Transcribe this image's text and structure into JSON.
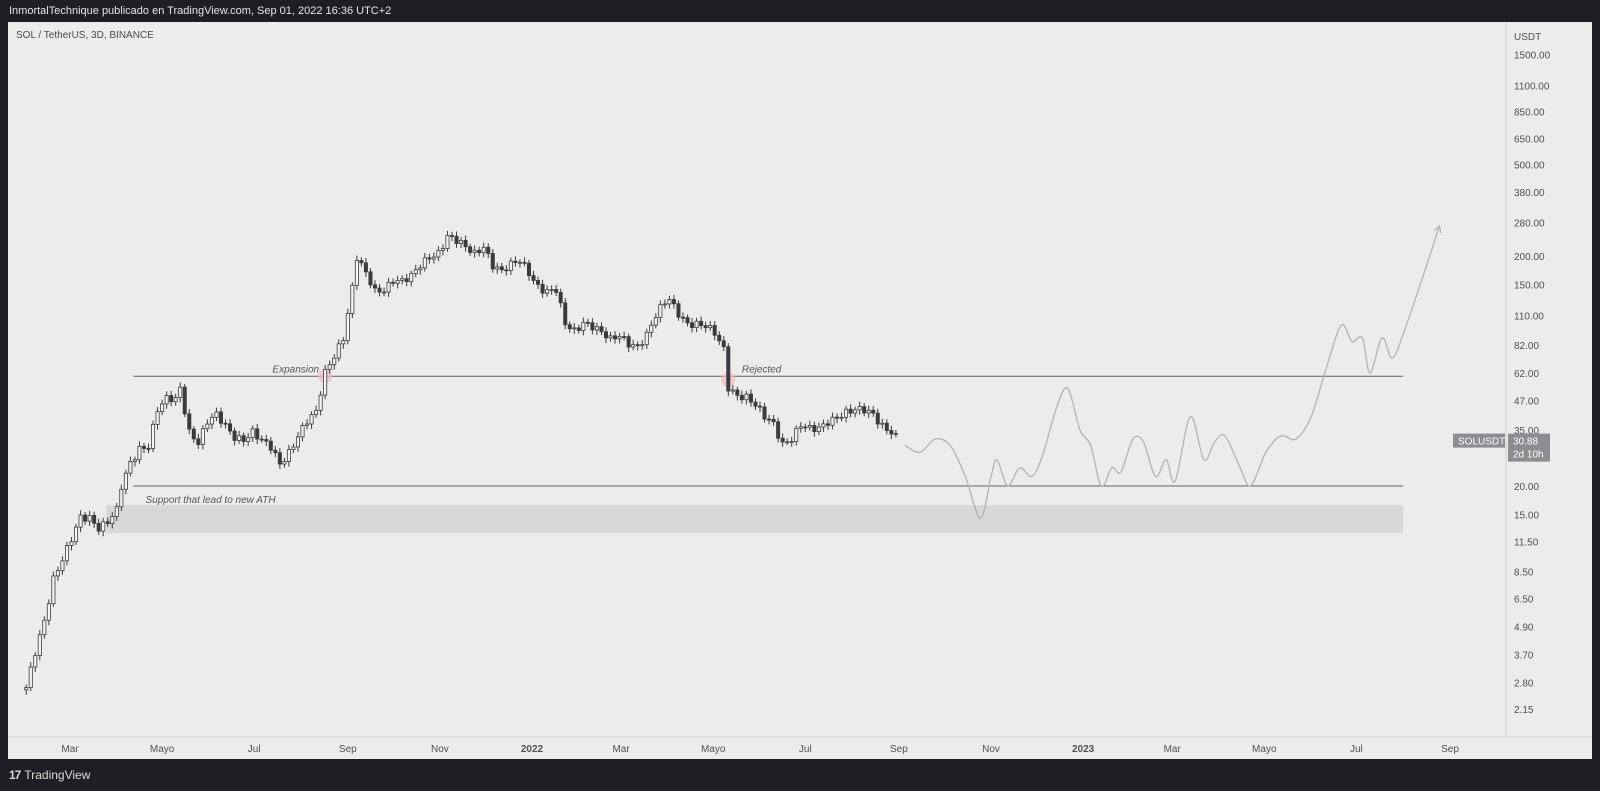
{
  "header": {
    "published_line": "InmortalTechnique publicado en TradingView.com, Sep 01, 2022 16:36 UTC+2"
  },
  "symbol_line": "SOL / TetherUS, 3D, BINANCE",
  "footer": {
    "logo_mark": "17",
    "brand": "TradingView"
  },
  "colors": {
    "panel_bg": "#edecea",
    "frame": "#1e1f24",
    "candle": "#3b3b3f",
    "level_line": "#606060",
    "zone_fill": "#d9d8d8",
    "forecast": "#b3b3b3",
    "price_tag_bg": "#8c8c92"
  },
  "chart_data": {
    "type": "candlestick",
    "title": "SOL / TetherUS, 3D, BINANCE",
    "y_scale": "log",
    "ylim": [
      2.0,
      1800
    ],
    "y_unit": "USDT",
    "yticks": [
      "1500.00",
      "1100.00",
      "850.00",
      "650.00",
      "500.00",
      "380.00",
      "280.00",
      "200.00",
      "150.00",
      "110.00",
      "82.00",
      "62.00",
      "47.00",
      "35.00",
      "20.00",
      "15.00",
      "11.50",
      "8.50",
      "6.50",
      "4.90",
      "3.70",
      "2.80",
      "2.15"
    ],
    "xticks": [
      {
        "label": "Mar",
        "date": "2021-03-01"
      },
      {
        "label": "Mayo",
        "date": "2021-05-01"
      },
      {
        "label": "Jul",
        "date": "2021-07-01"
      },
      {
        "label": "Sep",
        "date": "2021-09-01"
      },
      {
        "label": "Nov",
        "date": "2021-11-01"
      },
      {
        "label": "2022",
        "date": "2022-01-01"
      },
      {
        "label": "Mar",
        "date": "2022-03-01"
      },
      {
        "label": "Mayo",
        "date": "2022-05-01"
      },
      {
        "label": "Jul",
        "date": "2022-07-01"
      },
      {
        "label": "Sep",
        "date": "2022-09-01"
      },
      {
        "label": "Nov",
        "date": "2022-11-01"
      },
      {
        "label": "2023",
        "date": "2023-01-01"
      },
      {
        "label": "Mar",
        "date": "2023-03-01"
      },
      {
        "label": "Mayo",
        "date": "2023-05-01"
      },
      {
        "label": "Jul",
        "date": "2023-07-01"
      },
      {
        "label": "Sep",
        "date": "2023-09-01"
      }
    ],
    "price_path": [
      [
        "2021-01-31",
        2.6
      ],
      [
        "2021-02-06",
        3.8
      ],
      [
        "2021-02-12",
        5.3
      ],
      [
        "2021-02-18",
        8.0
      ],
      [
        "2021-02-24",
        9.5
      ],
      [
        "2021-03-02",
        11.5
      ],
      [
        "2021-03-08",
        14.5
      ],
      [
        "2021-03-14",
        14.8
      ],
      [
        "2021-03-20",
        13.4
      ],
      [
        "2021-03-26",
        14.0
      ],
      [
        "2021-04-01",
        15.4
      ],
      [
        "2021-04-04",
        19.5
      ],
      [
        "2021-04-10",
        25.0
      ],
      [
        "2021-04-16",
        29.5
      ],
      [
        "2021-04-22",
        30.5
      ],
      [
        "2021-04-28",
        43.0
      ],
      [
        "2021-05-04",
        47.0
      ],
      [
        "2021-05-10",
        47.0
      ],
      [
        "2021-05-13",
        53.0
      ],
      [
        "2021-05-19",
        35.0
      ],
      [
        "2021-05-25",
        31.5
      ],
      [
        "2021-05-31",
        38.0
      ],
      [
        "2021-06-06",
        40.0
      ],
      [
        "2021-06-12",
        36.0
      ],
      [
        "2021-06-18",
        33.0
      ],
      [
        "2021-06-24",
        32.5
      ],
      [
        "2021-06-30",
        34.5
      ],
      [
        "2021-07-06",
        31.0
      ],
      [
        "2021-07-12",
        29.0
      ],
      [
        "2021-07-18",
        25.0
      ],
      [
        "2021-07-24",
        28.5
      ],
      [
        "2021-07-30",
        33.5
      ],
      [
        "2021-08-05",
        38.0
      ],
      [
        "2021-08-11",
        41.0
      ],
      [
        "2021-08-17",
        62.0
      ],
      [
        "2021-08-23",
        75.0
      ],
      [
        "2021-08-29",
        90.0
      ],
      [
        "2021-09-04",
        145.0
      ],
      [
        "2021-09-07",
        195.0
      ],
      [
        "2021-09-13",
        165.0
      ],
      [
        "2021-09-19",
        140.0
      ],
      [
        "2021-09-25",
        145.0
      ],
      [
        "2021-10-01",
        160.0
      ],
      [
        "2021-10-07",
        155.0
      ],
      [
        "2021-10-13",
        160.0
      ],
      [
        "2021-10-19",
        180.0
      ],
      [
        "2021-10-25",
        200.0
      ],
      [
        "2021-10-31",
        210.0
      ],
      [
        "2021-11-06",
        245.0
      ],
      [
        "2021-11-12",
        230.0
      ],
      [
        "2021-11-18",
        215.0
      ],
      [
        "2021-11-24",
        205.0
      ],
      [
        "2021-11-30",
        225.0
      ],
      [
        "2021-12-06",
        185.0
      ],
      [
        "2021-12-12",
        170.0
      ],
      [
        "2021-12-18",
        180.0
      ],
      [
        "2021-12-24",
        190.0
      ],
      [
        "2021-12-30",
        172.0
      ],
      [
        "2022-01-05",
        150.0
      ],
      [
        "2022-01-11",
        140.0
      ],
      [
        "2022-01-17",
        140.0
      ],
      [
        "2022-01-23",
        100.0
      ],
      [
        "2022-01-29",
        95.0
      ],
      [
        "2022-02-04",
        105.0
      ],
      [
        "2022-02-10",
        100.0
      ],
      [
        "2022-02-16",
        92.0
      ],
      [
        "2022-02-22",
        85.0
      ],
      [
        "2022-02-28",
        90.0
      ],
      [
        "2022-03-06",
        85.0
      ],
      [
        "2022-03-12",
        82.0
      ],
      [
        "2022-03-18",
        90.0
      ],
      [
        "2022-03-24",
        108.0
      ],
      [
        "2022-03-30",
        125.0
      ],
      [
        "2022-04-02",
        130.0
      ],
      [
        "2022-04-08",
        115.0
      ],
      [
        "2022-04-14",
        103.0
      ],
      [
        "2022-04-20",
        100.0
      ],
      [
        "2022-04-26",
        97.0
      ],
      [
        "2022-05-02",
        92.0
      ],
      [
        "2022-05-08",
        80.0
      ],
      [
        "2022-05-11",
        55.0
      ],
      [
        "2022-05-17",
        50.0
      ],
      [
        "2022-05-23",
        48.0
      ],
      [
        "2022-05-29",
        44.0
      ],
      [
        "2022-06-04",
        40.0
      ],
      [
        "2022-06-10",
        38.0
      ],
      [
        "2022-06-16",
        31.0
      ],
      [
        "2022-06-22",
        32.0
      ],
      [
        "2022-06-28",
        36.0
      ],
      [
        "2022-07-04",
        35.0
      ],
      [
        "2022-07-10",
        36.0
      ],
      [
        "2022-07-16",
        39.0
      ],
      [
        "2022-07-22",
        40.0
      ],
      [
        "2022-07-28",
        41.0
      ],
      [
        "2022-08-03",
        42.0
      ],
      [
        "2022-08-09",
        43.0
      ],
      [
        "2022-08-15",
        42.0
      ],
      [
        "2022-08-21",
        37.0
      ],
      [
        "2022-08-27",
        34.0
      ],
      [
        "2022-09-01",
        30.88
      ]
    ],
    "current_price": {
      "symbol": "SOLUSDT",
      "value": "30.88",
      "countdown": "2d 10h"
    },
    "levels": [
      {
        "price": 60,
        "from": "2021-04-12",
        "to": "2023-08-01",
        "label": "Expansion",
        "label2": "Rejected"
      },
      {
        "price": 20,
        "from": "2021-04-12",
        "to": "2023-08-01",
        "label": "Support that lead to new ATH"
      }
    ],
    "zone": {
      "from": "2021-03-25",
      "to": "2023-08-01",
      "low": 12.5,
      "high": 16.5
    },
    "markers": [
      {
        "date": "2021-08-17",
        "price": 60
      },
      {
        "date": "2022-05-11",
        "price": 58
      }
    ],
    "forecast_path": [
      [
        "2022-09-05",
        30.0
      ],
      [
        "2022-09-15",
        28.0
      ],
      [
        "2022-09-25",
        32.0
      ],
      [
        "2022-10-05",
        30.0
      ],
      [
        "2022-10-15",
        22.0
      ],
      [
        "2022-10-25",
        14.5
      ],
      [
        "2022-11-01",
        22.0
      ],
      [
        "2022-11-05",
        26.0
      ],
      [
        "2022-11-12",
        20.0
      ],
      [
        "2022-11-20",
        24.0
      ],
      [
        "2022-11-28",
        22.0
      ],
      [
        "2022-12-05",
        27.0
      ],
      [
        "2022-12-15",
        45.0
      ],
      [
        "2022-12-22",
        53.0
      ],
      [
        "2022-12-30",
        35.0
      ],
      [
        "2023-01-06",
        30.0
      ],
      [
        "2023-01-13",
        20.0
      ],
      [
        "2023-01-20",
        24.0
      ],
      [
        "2023-01-26",
        23.0
      ],
      [
        "2023-02-03",
        32.0
      ],
      [
        "2023-02-10",
        31.0
      ],
      [
        "2023-02-18",
        22.0
      ],
      [
        "2023-02-25",
        26.0
      ],
      [
        "2023-03-03",
        21.0
      ],
      [
        "2023-03-13",
        40.0
      ],
      [
        "2023-03-22",
        26.0
      ],
      [
        "2023-03-29",
        31.0
      ],
      [
        "2023-04-05",
        33.0
      ],
      [
        "2023-04-15",
        24.0
      ],
      [
        "2023-04-22",
        20.0
      ],
      [
        "2023-05-02",
        28.0
      ],
      [
        "2023-05-12",
        33.0
      ],
      [
        "2023-05-22",
        32.0
      ],
      [
        "2023-06-01",
        40.0
      ],
      [
        "2023-06-11",
        65.0
      ],
      [
        "2023-06-21",
        100.0
      ],
      [
        "2023-06-28",
        85.0
      ],
      [
        "2023-07-05",
        88.0
      ],
      [
        "2023-07-10",
        62.0
      ],
      [
        "2023-07-18",
        88.0
      ],
      [
        "2023-07-25",
        72.0
      ],
      [
        "2023-08-03",
        100.0
      ],
      [
        "2023-08-15",
        170.0
      ],
      [
        "2023-08-25",
        270.0
      ]
    ]
  }
}
